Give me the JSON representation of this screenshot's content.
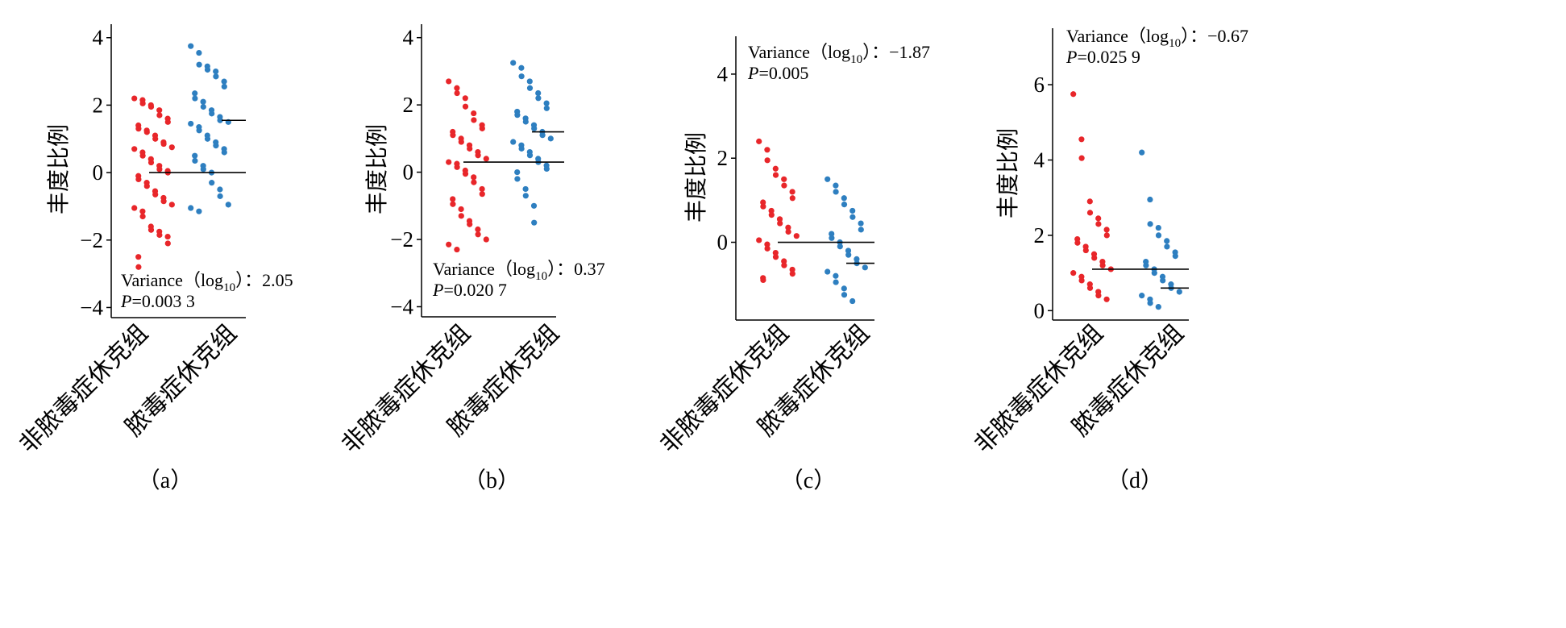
{
  "colors": {
    "group1": "#e8262a",
    "group2": "#2e7fc0",
    "axis": "#000000"
  },
  "chart_data": [
    {
      "type": "scatter",
      "caption": "（a）",
      "ylabel": "丰度比例",
      "categories": [
        "非脓毒症休克组",
        "脓毒症休克组"
      ],
      "ylim": [
        -4.3,
        4.4
      ],
      "yticks": [
        "4",
        "2",
        "0",
        "−2",
        "−4"
      ],
      "annotation": {
        "variance_label": "Variance（log",
        "log_sub": "10",
        "variance_suffix": "）：2.05",
        "p_label": "P",
        "p_value": "=0.003 3"
      },
      "medians": [
        0.0,
        1.55
      ],
      "series": [
        {
          "values": [
            2.2,
            2.15,
            2.05,
            2.0,
            1.95,
            1.85,
            1.7,
            1.6,
            1.5,
            1.4,
            1.3,
            1.25,
            1.2,
            1.1,
            1.0,
            0.9,
            0.85,
            0.75,
            0.7,
            0.6,
            0.5,
            0.4,
            0.3,
            0.2,
            0.1,
            0.05,
            0.0,
            -0.1,
            -0.2,
            -0.3,
            -0.4,
            -0.55,
            -0.65,
            -0.75,
            -0.85,
            -0.95,
            -1.05,
            -1.15,
            -1.3,
            -1.6,
            -1.7,
            -1.75,
            -1.85,
            -1.9,
            -2.1,
            -2.5,
            -2.8
          ]
        },
        {
          "values": [
            3.75,
            3.55,
            3.2,
            3.15,
            3.05,
            3.0,
            2.85,
            2.7,
            2.55,
            2.35,
            2.2,
            2.1,
            1.95,
            1.85,
            1.75,
            1.65,
            1.55,
            1.5,
            1.45,
            1.35,
            1.25,
            1.1,
            1.0,
            0.9,
            0.8,
            0.7,
            0.6,
            0.5,
            0.35,
            0.2,
            0.1,
            0.0,
            -0.3,
            -0.5,
            -0.7,
            -0.95,
            -1.05,
            -1.15
          ]
        }
      ]
    },
    {
      "type": "scatter",
      "caption": "（b）",
      "ylabel": "丰度比例",
      "categories": [
        "非脓毒症休克组",
        "脓毒症休克组"
      ],
      "ylim": [
        -4.3,
        4.4
      ],
      "yticks": [
        "4",
        "2",
        "0",
        "−2",
        "−4"
      ],
      "annotation": {
        "variance_label": "Variance（log",
        "log_sub": "10",
        "variance_suffix": "）：0.37",
        "p_label": "P",
        "p_value": "=0.020 7"
      },
      "medians": [
        0.3,
        1.2
      ],
      "series": [
        {
          "values": [
            2.7,
            2.5,
            2.35,
            2.2,
            1.95,
            1.75,
            1.55,
            1.4,
            1.3,
            1.2,
            1.1,
            1.0,
            0.9,
            0.8,
            0.7,
            0.6,
            0.5,
            0.4,
            0.3,
            0.25,
            0.15,
            0.05,
            -0.05,
            -0.15,
            -0.3,
            -0.5,
            -0.65,
            -0.8,
            -0.95,
            -1.1,
            -1.3,
            -1.45,
            -1.55,
            -1.7,
            -1.85,
            -2.0,
            -2.15,
            -2.3
          ]
        },
        {
          "values": [
            3.25,
            3.1,
            2.85,
            2.7,
            2.5,
            2.35,
            2.2,
            2.05,
            1.9,
            1.8,
            1.7,
            1.6,
            1.5,
            1.4,
            1.3,
            1.2,
            1.1,
            1.0,
            0.9,
            0.8,
            0.7,
            0.6,
            0.5,
            0.4,
            0.3,
            0.2,
            0.1,
            0.0,
            -0.2,
            -0.5,
            -0.7,
            -1.0,
            -1.5
          ]
        }
      ]
    },
    {
      "type": "scatter",
      "caption": "（c）",
      "ylabel": "丰度比例",
      "categories": [
        "非脓毒症休克组",
        "脓毒症休克组"
      ],
      "ylim": [
        -1.85,
        4.9
      ],
      "yticks": [
        "4",
        "2",
        "0"
      ],
      "annotation": {
        "variance_label": "Variance（log",
        "log_sub": "10",
        "variance_suffix": "）：−1.87",
        "p_label": "P",
        "p_value": "=0.005"
      },
      "medians": [
        0.0,
        -0.5
      ],
      "series": [
        {
          "values": [
            2.4,
            2.2,
            1.95,
            1.75,
            1.6,
            1.5,
            1.35,
            1.2,
            1.05,
            0.95,
            0.85,
            0.75,
            0.65,
            0.55,
            0.45,
            0.35,
            0.25,
            0.15,
            0.05,
            -0.05,
            -0.15,
            -0.25,
            -0.35,
            -0.45,
            -0.55,
            -0.65,
            -0.75,
            -0.85,
            -0.9
          ]
        },
        {
          "values": [
            1.5,
            1.35,
            1.2,
            1.05,
            0.9,
            0.75,
            0.6,
            0.45,
            0.3,
            0.2,
            0.1,
            0.0,
            -0.1,
            -0.2,
            -0.3,
            -0.4,
            -0.5,
            -0.6,
            -0.7,
            -0.8,
            -0.95,
            -1.1,
            -1.25,
            -1.4
          ]
        }
      ]
    },
    {
      "type": "scatter",
      "caption": "（d）",
      "ylabel": "丰度比例",
      "categories": [
        "非脓毒症休克组",
        "脓毒症休克组"
      ],
      "ylim": [
        -0.25,
        7.5
      ],
      "yticks": [
        "6",
        "4",
        "2",
        "0"
      ],
      "annotation": {
        "variance_label": "Variance（log",
        "log_sub": "10",
        "variance_suffix": "）：−0.67",
        "p_label": "P",
        "p_value": "=0.025 9"
      },
      "medians": [
        1.1,
        0.6
      ],
      "series": [
        {
          "values": [
            5.75,
            4.55,
            4.05,
            2.9,
            2.6,
            2.45,
            2.3,
            2.15,
            2.0,
            1.9,
            1.8,
            1.7,
            1.6,
            1.5,
            1.4,
            1.3,
            1.2,
            1.1,
            1.0,
            0.9,
            0.8,
            0.7,
            0.6,
            0.5,
            0.4,
            0.3
          ]
        },
        {
          "values": [
            4.2,
            2.95,
            2.3,
            2.2,
            2.0,
            1.85,
            1.7,
            1.55,
            1.45,
            1.3,
            1.2,
            1.1,
            1.0,
            0.9,
            0.8,
            0.7,
            0.6,
            0.5,
            0.4,
            0.3,
            0.2,
            0.1
          ]
        }
      ]
    }
  ]
}
